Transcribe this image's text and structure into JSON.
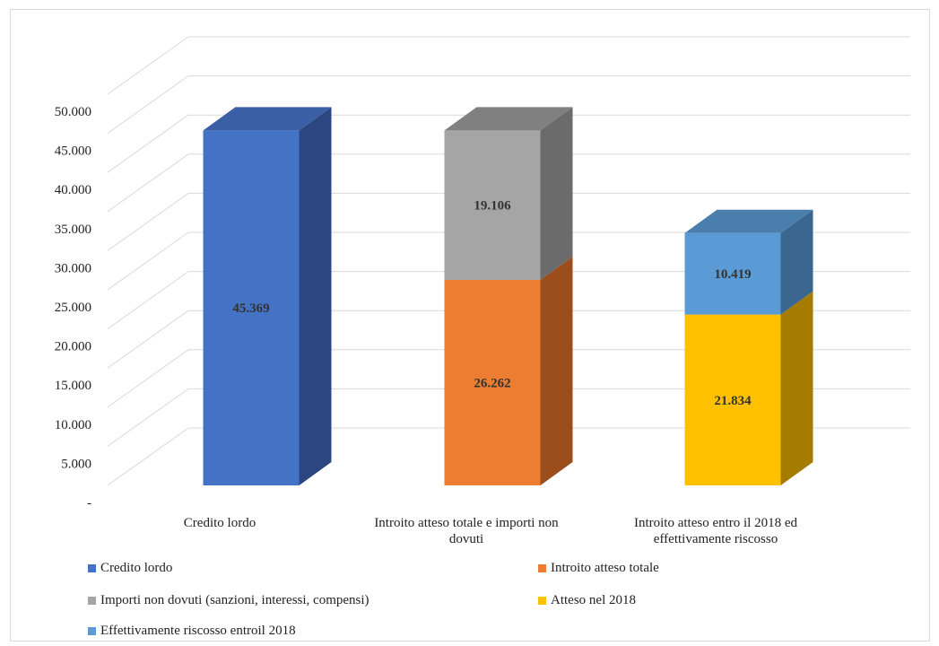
{
  "chart_data": {
    "type": "bar",
    "stacked": true,
    "three_d": true,
    "categories": [
      [
        "Credito lordo"
      ],
      [
        "Introito atteso totale e importi non",
        "dovuti"
      ],
      [
        "Introito atteso entro il 2018 ed",
        "effettivamente riscosso"
      ]
    ],
    "series": [
      {
        "name": "Credito lordo",
        "color": "#4472C4",
        "side": "#2B4680",
        "top": "#3A5FA4",
        "values": [
          45369,
          0,
          0
        ],
        "labels": [
          "45.369",
          "",
          ""
        ]
      },
      {
        "name": "Introito atteso totale",
        "color": "#ED7D31",
        "side": "#9B4D1B",
        "top": "#C4621F",
        "values": [
          0,
          26262,
          0
        ],
        "labels": [
          "",
          "26.262",
          ""
        ]
      },
      {
        "name": "Importi non dovuti (sanzioni, interessi, compensi)",
        "color": "#A5A5A5",
        "side": "#6B6B6B",
        "top": "#808080",
        "values": [
          0,
          19106,
          0
        ],
        "labels": [
          "",
          "19.106",
          ""
        ]
      },
      {
        "name": "Atteso nel 2018",
        "color": "#FFC000",
        "side": "#A67C00",
        "top": "#D9A300",
        "values": [
          0,
          0,
          21834
        ],
        "labels": [
          "",
          "",
          "21.834"
        ]
      },
      {
        "name": "Effettivamente riscosso entroil 2018",
        "color": "#5B9BD5",
        "side": "#3A6690",
        "top": "#4A7EAD",
        "values": [
          0,
          0,
          10419
        ],
        "labels": [
          "",
          "",
          "10.419"
        ]
      }
    ],
    "yticks": [
      "-",
      "5.000",
      "10.000",
      "15.000",
      "20.000",
      "25.000",
      "30.000",
      "35.000",
      "40.000",
      "45.000",
      "50.000"
    ],
    "ylim": [
      0,
      50000
    ],
    "grid": true,
    "legend_position": "bottom"
  }
}
